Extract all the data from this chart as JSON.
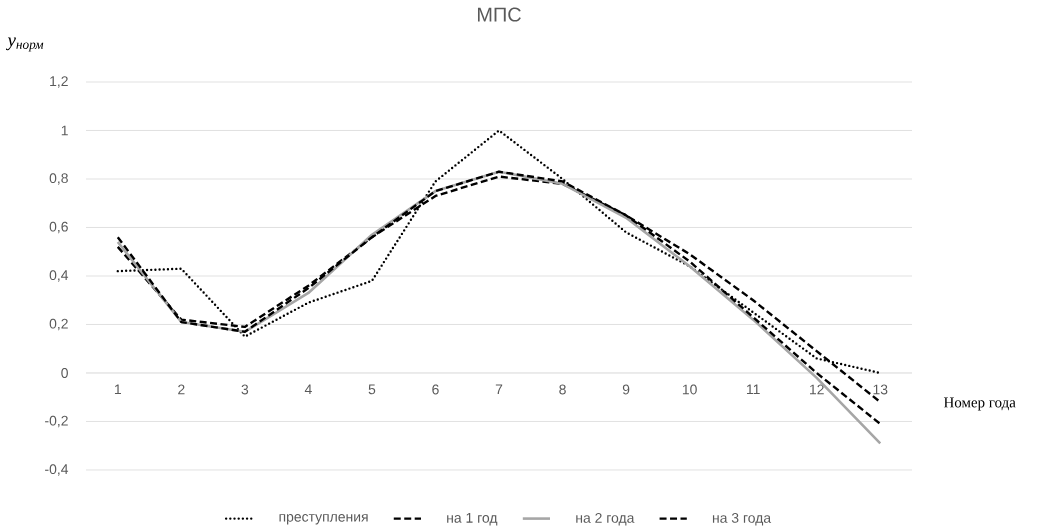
{
  "chart_data": {
    "type": "line",
    "title": "МПС",
    "ylabel": "y$_{норм}$",
    "xlabel": "Номер года",
    "categories": [
      "1",
      "2",
      "3",
      "4",
      "5",
      "6",
      "7",
      "8",
      "9",
      "10",
      "11",
      "12",
      "13"
    ],
    "series": [
      {
        "name": "преступления",
        "color": "#000000",
        "line_style": "dotted",
        "values": [
          0.42,
          0.43,
          0.15,
          0.29,
          0.38,
          0.79,
          1.0,
          0.8,
          0.58,
          0.44,
          0.25,
          0.06,
          0.0
        ]
      },
      {
        "name": "на 1 год",
        "color": "#000000",
        "line_style": "dashed",
        "values": [
          0.52,
          0.22,
          0.19,
          0.36,
          0.56,
          0.73,
          0.81,
          0.78,
          0.65,
          0.49,
          0.3,
          0.09,
          -0.12
        ]
      },
      {
        "name": "на 2 года",
        "color": "#a6a6a6",
        "line_style": "solid",
        "values": [
          0.54,
          0.21,
          0.17,
          0.33,
          0.57,
          0.75,
          0.83,
          0.78,
          0.64,
          0.44,
          0.22,
          -0.02,
          -0.29
        ]
      },
      {
        "name": "на 3 года",
        "color": "#000000",
        "line_style": "dashed",
        "values": [
          0.56,
          0.21,
          0.17,
          0.35,
          0.56,
          0.75,
          0.83,
          0.79,
          0.65,
          0.46,
          0.23,
          0.0,
          -0.21
        ]
      }
    ],
    "ylim": [
      -0.4,
      1.2
    ],
    "yticks": [
      {
        "value": -0.4,
        "label": "-0,4"
      },
      {
        "value": -0.2,
        "label": "-0,2"
      },
      0,
      {
        "value": 0.2,
        "label": "0,2"
      },
      {
        "value": 0.4,
        "label": "0,4"
      },
      {
        "value": 0.6,
        "label": "0,6"
      },
      {
        "value": 0.8,
        "label": "0,8"
      },
      1,
      {
        "value": 1.2,
        "label": "1,2"
      }
    ],
    "grid": "y",
    "legend": "bottom",
    "marker": "none"
  }
}
